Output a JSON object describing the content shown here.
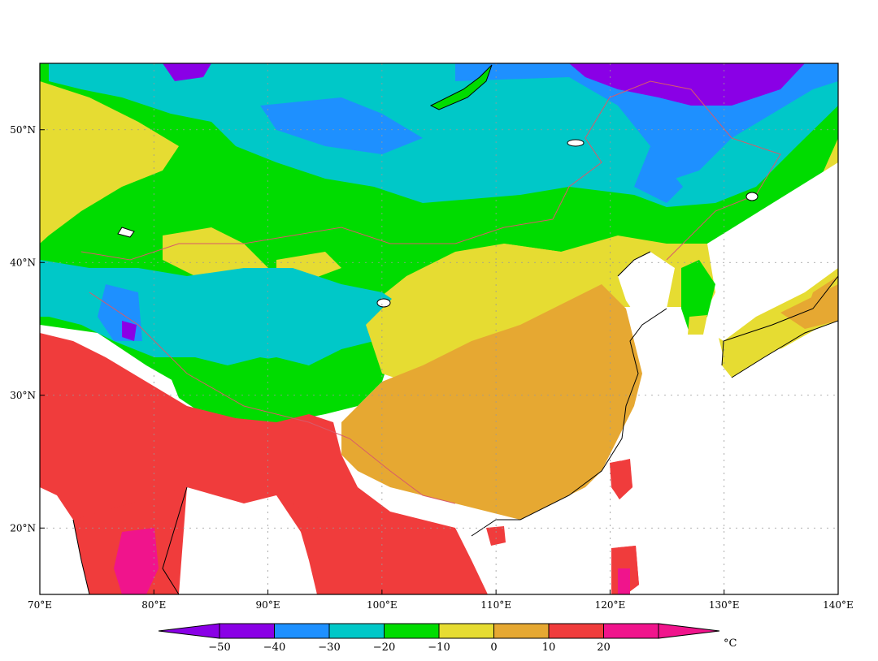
{
  "map": {
    "lon_range": [
      70,
      140
    ],
    "lat_range": [
      15,
      55
    ],
    "lon_ticks": [
      "70°E",
      "80°E",
      "90°E",
      "100°E",
      "110°E",
      "120°E",
      "130°E",
      "140°E"
    ],
    "lat_ticks": [
      "20°N",
      "30°N",
      "40°N",
      "50°N"
    ],
    "gridlines": true
  },
  "colorbar": {
    "unit": "°C",
    "labels": [
      "−50",
      "−40",
      "−30",
      "−20",
      "−10",
      "0",
      "10",
      "20"
    ],
    "colors": [
      "#8a00e6",
      "#8a00e6",
      "#1e90ff",
      "#00c8c8",
      "#00dc00",
      "#e6dc32",
      "#e6a832",
      "#f03c3c",
      "#f0148c",
      "#f0148c"
    ]
  }
}
